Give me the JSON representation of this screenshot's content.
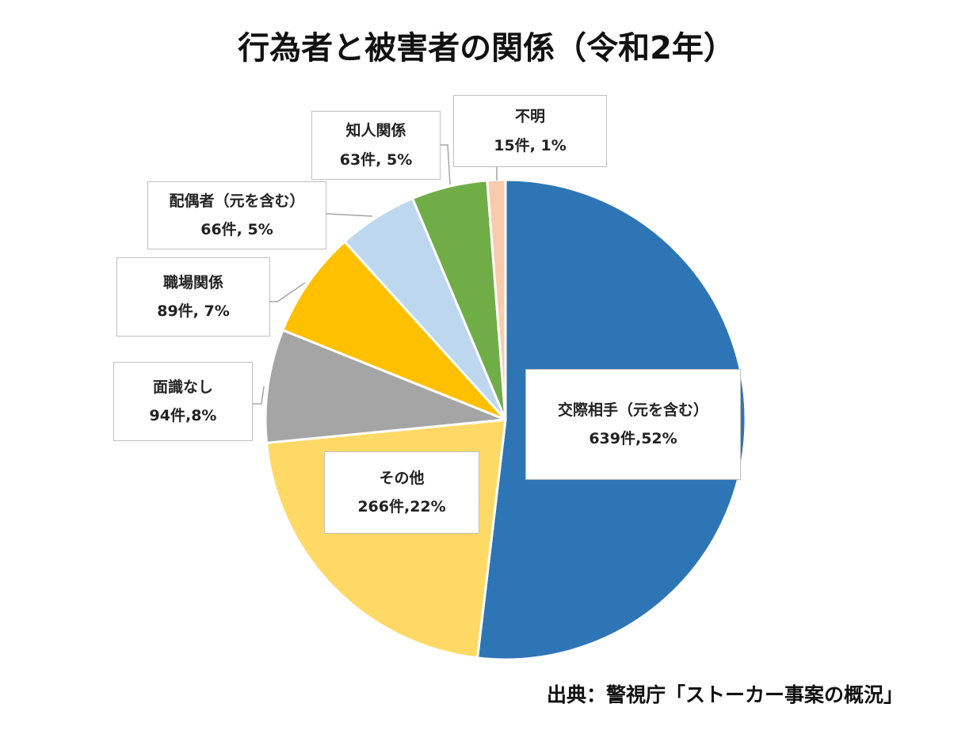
{
  "chart_data": {
    "type": "pie",
    "title": "行為者と被害者の関係（令和2年）",
    "slices": [
      {
        "label": "交際相手（元を含む）",
        "value": 639,
        "value_text": "639件,52%",
        "color": "#2e75b6"
      },
      {
        "label": "その他",
        "value": 266,
        "value_text": "266件,22%",
        "color": "#ffd966"
      },
      {
        "label": "面識なし",
        "value": 94,
        "value_text": "94件,8%",
        "color": "#a5a5a5"
      },
      {
        "label": "職場関係",
        "value": 89,
        "value_text": "89件, 7%",
        "color": "#ffc000"
      },
      {
        "label": "配偶者（元を含む）",
        "value": 66,
        "value_text": "66件, 5%",
        "color": "#bdd7ee"
      },
      {
        "label": "知人関係",
        "value": 63,
        "value_text": "63件, 5%",
        "color": "#70ad47"
      },
      {
        "label": "不明",
        "value": 15,
        "value_text": "15件, 1%",
        "color": "#f8cbad"
      }
    ],
    "direction": "clockwise from top",
    "source": "出典：警視庁「ストーカー事案の概況」"
  }
}
